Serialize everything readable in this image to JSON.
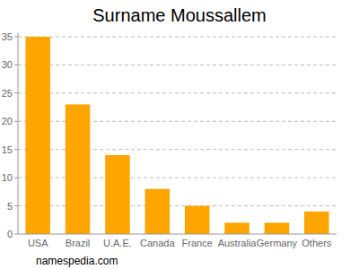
{
  "chart_data": {
    "type": "bar",
    "title": "Surname Moussallem",
    "categories": [
      "USA",
      "Brazil",
      "U.A.E.",
      "Canada",
      "France",
      "Australia",
      "Germany",
      "Others"
    ],
    "values": [
      35,
      23,
      14,
      8,
      5,
      2,
      2,
      4
    ],
    "color": "#ffa500",
    "ylim": [
      0,
      35
    ],
    "yticks": [
      0,
      5,
      10,
      15,
      20,
      25,
      30,
      35
    ],
    "grid": true,
    "source": "namespedia.com"
  }
}
